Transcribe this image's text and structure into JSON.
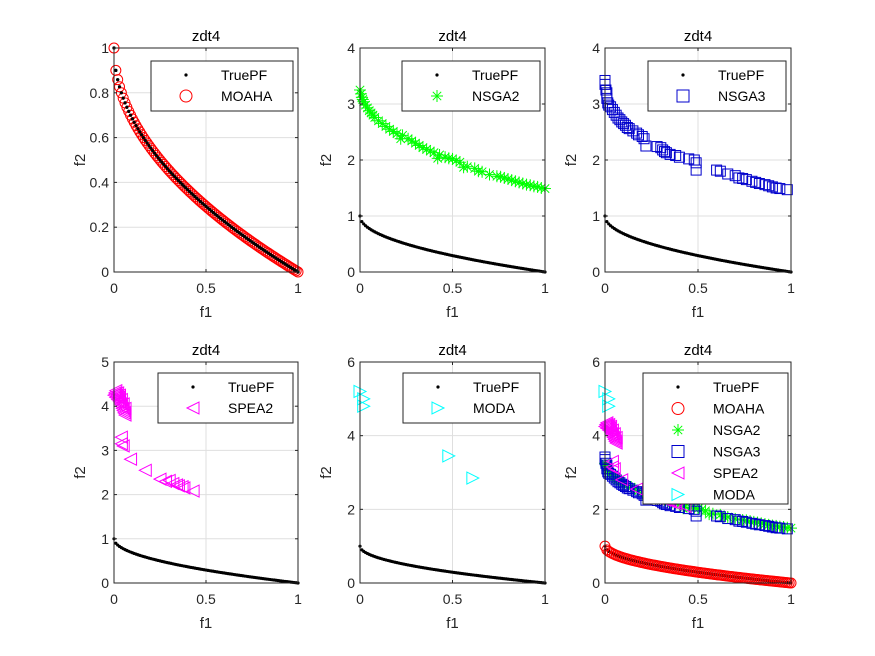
{
  "figure": {
    "background": "#ffffff"
  },
  "colors": {
    "TruePF": "#000000",
    "MOAHA": "#ff0000",
    "NSGA2": "#00ff00",
    "NSGA3": "#0000cc",
    "SPEA2": "#ff00ff",
    "MODA": "#00ffff"
  },
  "markers": {
    "TruePF": "dot",
    "MOAHA": "circle",
    "NSGA2": "asterisk",
    "NSGA3": "square",
    "SPEA2": "triangle-left",
    "MODA": "triangle-right"
  },
  "chart_data": [
    {
      "type": "scatter",
      "title": "zdt4",
      "xlabel": "f1",
      "ylabel": "f2",
      "xlim": [
        0,
        1
      ],
      "ylim": [
        0,
        1
      ],
      "xticks": [
        0,
        0.5,
        1
      ],
      "xtick_labels": [
        "0",
        "0.5",
        "1"
      ],
      "yticks": [
        0,
        0.2,
        0.4,
        0.6,
        0.8,
        1
      ],
      "ytick_labels": [
        "0",
        "0.2",
        "0.4",
        "0.6",
        "0.8",
        "1"
      ],
      "grid": true,
      "legend": {
        "position": "top-right",
        "entries": [
          "TruePF",
          "MOAHA"
        ]
      },
      "series": [
        {
          "name": "TruePF",
          "curve": "f2 = 1 - sqrt(f1)",
          "f1_range": [
            0,
            1
          ],
          "n_points": 100
        },
        {
          "name": "MOAHA",
          "curve": "f2 = 1 - sqrt(f1)",
          "f1_range": [
            0,
            1
          ],
          "n_points": 100
        }
      ]
    },
    {
      "type": "scatter",
      "title": "zdt4",
      "xlabel": "f1",
      "ylabel": "f2",
      "xlim": [
        0,
        1
      ],
      "ylim": [
        0,
        4
      ],
      "xticks": [
        0,
        0.5,
        1
      ],
      "xtick_labels": [
        "0",
        "0.5",
        "1"
      ],
      "yticks": [
        0,
        1,
        2,
        3,
        4
      ],
      "ytick_labels": [
        "0",
        "1",
        "2",
        "3",
        "4"
      ],
      "grid": true,
      "legend": {
        "position": "top-right",
        "entries": [
          "TruePF",
          "NSGA2"
        ]
      },
      "series": [
        {
          "name": "TruePF",
          "curve": "f2 = 1 - sqrt(f1)",
          "f1_range": [
            0,
            1
          ],
          "n_points": 100
        },
        {
          "name": "NSGA2",
          "points": [
            [
              0,
              3.25
            ],
            [
              0.005,
              3.18
            ],
            [
              0.01,
              3.12
            ],
            [
              0.015,
              3.08
            ],
            [
              0.02,
              3.04
            ],
            [
              0.03,
              2.98
            ],
            [
              0.04,
              2.93
            ],
            [
              0.05,
              2.88
            ],
            [
              0.06,
              2.84
            ],
            [
              0.07,
              2.8
            ],
            [
              0.08,
              2.76
            ],
            [
              0.1,
              2.7
            ],
            [
              0.12,
              2.65
            ],
            [
              0.14,
              2.6
            ],
            [
              0.16,
              2.55
            ],
            [
              0.18,
              2.51
            ],
            [
              0.2,
              2.47
            ],
            [
              0.22,
              2.38
            ],
            [
              0.23,
              2.44
            ],
            [
              0.26,
              2.38
            ],
            [
              0.28,
              2.34
            ],
            [
              0.3,
              2.3
            ],
            [
              0.32,
              2.26
            ],
            [
              0.34,
              2.22
            ],
            [
              0.36,
              2.19
            ],
            [
              0.38,
              2.16
            ],
            [
              0.4,
              2.13
            ],
            [
              0.42,
              2.03
            ],
            [
              0.43,
              2.09
            ],
            [
              0.46,
              2.05
            ],
            [
              0.48,
              2.03
            ],
            [
              0.5,
              2.02
            ],
            [
              0.52,
              1.99
            ],
            [
              0.54,
              1.96
            ],
            [
              0.56,
              1.87
            ],
            [
              0.58,
              1.88
            ],
            [
              0.62,
              1.85
            ],
            [
              0.64,
              1.8
            ],
            [
              0.66,
              1.79
            ],
            [
              0.7,
              1.74
            ],
            [
              0.74,
              1.71
            ],
            [
              0.76,
              1.7
            ],
            [
              0.78,
              1.68
            ],
            [
              0.8,
              1.66
            ],
            [
              0.82,
              1.64
            ],
            [
              0.84,
              1.62
            ],
            [
              0.86,
              1.6
            ],
            [
              0.88,
              1.58
            ],
            [
              0.9,
              1.56
            ],
            [
              0.92,
              1.55
            ],
            [
              0.94,
              1.53
            ],
            [
              0.96,
              1.52
            ],
            [
              0.98,
              1.5
            ],
            [
              1.0,
              1.49
            ]
          ]
        }
      ]
    },
    {
      "type": "scatter",
      "title": "zdt4",
      "xlabel": "f1",
      "ylabel": "f2",
      "xlim": [
        0,
        1
      ],
      "ylim": [
        0,
        4
      ],
      "xticks": [
        0,
        0.5,
        1
      ],
      "xtick_labels": [
        "0",
        "0.5",
        "1"
      ],
      "yticks": [
        0,
        1,
        2,
        3,
        4
      ],
      "ytick_labels": [
        "0",
        "1",
        "2",
        "3",
        "4"
      ],
      "grid": true,
      "legend": {
        "position": "top-right",
        "entries": [
          "TruePF",
          "NSGA3"
        ]
      },
      "series": [
        {
          "name": "TruePF",
          "curve": "f2 = 1 - sqrt(f1)",
          "f1_range": [
            0,
            1
          ],
          "n_points": 100
        },
        {
          "name": "NSGA3",
          "points": [
            [
              0,
              3.42
            ],
            [
              0,
              3.35
            ],
            [
              0.005,
              3.25
            ],
            [
              0.01,
              3.2
            ],
            [
              0.01,
              3.1
            ],
            [
              0.015,
              3.02
            ],
            [
              0.02,
              2.98
            ],
            [
              0.03,
              2.95
            ],
            [
              0.04,
              2.9
            ],
            [
              0.05,
              2.85
            ],
            [
              0.06,
              2.8
            ],
            [
              0.07,
              2.75
            ],
            [
              0.08,
              2.72
            ],
            [
              0.09,
              2.68
            ],
            [
              0.1,
              2.65
            ],
            [
              0.11,
              2.62
            ],
            [
              0.12,
              2.58
            ],
            [
              0.13,
              2.56
            ],
            [
              0.15,
              2.52
            ],
            [
              0.17,
              2.48
            ],
            [
              0.18,
              2.45
            ],
            [
              0.2,
              2.42
            ],
            [
              0.21,
              2.38
            ],
            [
              0.22,
              2.25
            ],
            [
              0.28,
              2.24
            ],
            [
              0.3,
              2.22
            ],
            [
              0.31,
              2.18
            ],
            [
              0.32,
              2.15
            ],
            [
              0.33,
              2.13
            ],
            [
              0.35,
              2.1
            ],
            [
              0.38,
              2.08
            ],
            [
              0.4,
              2.05
            ],
            [
              0.45,
              2.02
            ],
            [
              0.48,
              2.0
            ],
            [
              0.49,
              1.95
            ],
            [
              0.49,
              1.82
            ],
            [
              0.6,
              1.82
            ],
            [
              0.62,
              1.8
            ],
            [
              0.66,
              1.75
            ],
            [
              0.7,
              1.72
            ],
            [
              0.72,
              1.68
            ],
            [
              0.74,
              1.67
            ],
            [
              0.76,
              1.65
            ],
            [
              0.79,
              1.62
            ],
            [
              0.81,
              1.6
            ],
            [
              0.83,
              1.58
            ],
            [
              0.86,
              1.56
            ],
            [
              0.88,
              1.54
            ],
            [
              0.9,
              1.52
            ],
            [
              0.92,
              1.5
            ],
            [
              0.94,
              1.49
            ],
            [
              0.98,
              1.47
            ]
          ]
        }
      ]
    },
    {
      "type": "scatter",
      "title": "zdt4",
      "xlabel": "f1",
      "ylabel": "f2",
      "xlim": [
        0,
        1
      ],
      "ylim": [
        0,
        5
      ],
      "xticks": [
        0,
        0.5,
        1
      ],
      "xtick_labels": [
        "0",
        "0.5",
        "1"
      ],
      "yticks": [
        0,
        1,
        2,
        3,
        4,
        5
      ],
      "ytick_labels": [
        "0",
        "1",
        "2",
        "3",
        "4",
        "5"
      ],
      "grid": true,
      "legend": {
        "position": "top-right",
        "entries": [
          "TruePF",
          "SPEA2"
        ]
      },
      "series": [
        {
          "name": "TruePF",
          "curve": "f2 = 1 - sqrt(f1)",
          "f1_range": [
            0,
            1
          ],
          "n_points": 100
        },
        {
          "name": "SPEA2",
          "points": [
            [
              0,
              4.25
            ],
            [
              0.005,
              4.3
            ],
            [
              0.01,
              4.35
            ],
            [
              0.01,
              4.2
            ],
            [
              0.015,
              4.25
            ],
            [
              0.02,
              4.3
            ],
            [
              0.02,
              4.15
            ],
            [
              0.025,
              4.2
            ],
            [
              0.03,
              4.1
            ],
            [
              0.03,
              4.25
            ],
            [
              0.035,
              4.05
            ],
            [
              0.04,
              4.15
            ],
            [
              0.04,
              4.0
            ],
            [
              0.045,
              3.95
            ],
            [
              0.05,
              4.05
            ],
            [
              0.05,
              3.9
            ],
            [
              0.055,
              3.85
            ],
            [
              0.06,
              3.95
            ],
            [
              0.06,
              3.8
            ],
            [
              0.04,
              3.3
            ],
            [
              0.04,
              3.15
            ],
            [
              0.05,
              3.1
            ],
            [
              0.09,
              2.8
            ],
            [
              0.17,
              2.55
            ],
            [
              0.25,
              2.35
            ],
            [
              0.28,
              2.3
            ],
            [
              0.3,
              2.32
            ],
            [
              0.32,
              2.25
            ],
            [
              0.34,
              2.22
            ],
            [
              0.35,
              2.2
            ],
            [
              0.37,
              2.18
            ],
            [
              0.38,
              2.15
            ],
            [
              0.43,
              2.08
            ]
          ]
        }
      ]
    },
    {
      "type": "scatter",
      "title": "zdt4",
      "xlabel": "f1",
      "ylabel": "f2",
      "xlim": [
        0,
        1
      ],
      "ylim": [
        0,
        6
      ],
      "xticks": [
        0,
        0.5,
        1
      ],
      "xtick_labels": [
        "0",
        "0.5",
        "1"
      ],
      "yticks": [
        0,
        2,
        4,
        6
      ],
      "ytick_labels": [
        "0",
        "2",
        "4",
        "6"
      ],
      "grid": true,
      "legend": {
        "position": "top-right",
        "entries": [
          "TruePF",
          "MODA"
        ]
      },
      "series": [
        {
          "name": "TruePF",
          "curve": "f2 = 1 - sqrt(f1)",
          "f1_range": [
            0,
            1
          ],
          "n_points": 100
        },
        {
          "name": "MODA",
          "points": [
            [
              0.0,
              5.2
            ],
            [
              0.02,
              5.0
            ],
            [
              0.02,
              4.8
            ],
            [
              0.48,
              3.45
            ],
            [
              0.61,
              2.85
            ]
          ]
        }
      ]
    },
    {
      "type": "scatter",
      "title": "zdt4",
      "xlabel": "f1",
      "ylabel": "f2",
      "xlim": [
        0,
        1
      ],
      "ylim": [
        0,
        6
      ],
      "xticks": [
        0,
        0.5,
        1
      ],
      "xtick_labels": [
        "0",
        "0.5",
        "1"
      ],
      "yticks": [
        0,
        2,
        4,
        6
      ],
      "ytick_labels": [
        "0",
        "2",
        "4",
        "6"
      ],
      "grid": true,
      "legend": {
        "position": "top-right",
        "entries": [
          "TruePF",
          "MOAHA",
          "NSGA2",
          "NSGA3",
          "SPEA2",
          "MODA"
        ]
      },
      "series": [
        {
          "name": "TruePF",
          "ref": "all"
        },
        {
          "name": "MOAHA",
          "ref": "all"
        },
        {
          "name": "NSGA2",
          "ref": "all"
        },
        {
          "name": "NSGA3",
          "ref": "all"
        },
        {
          "name": "SPEA2",
          "ref": "all"
        },
        {
          "name": "MODA",
          "ref": "all"
        }
      ]
    }
  ]
}
